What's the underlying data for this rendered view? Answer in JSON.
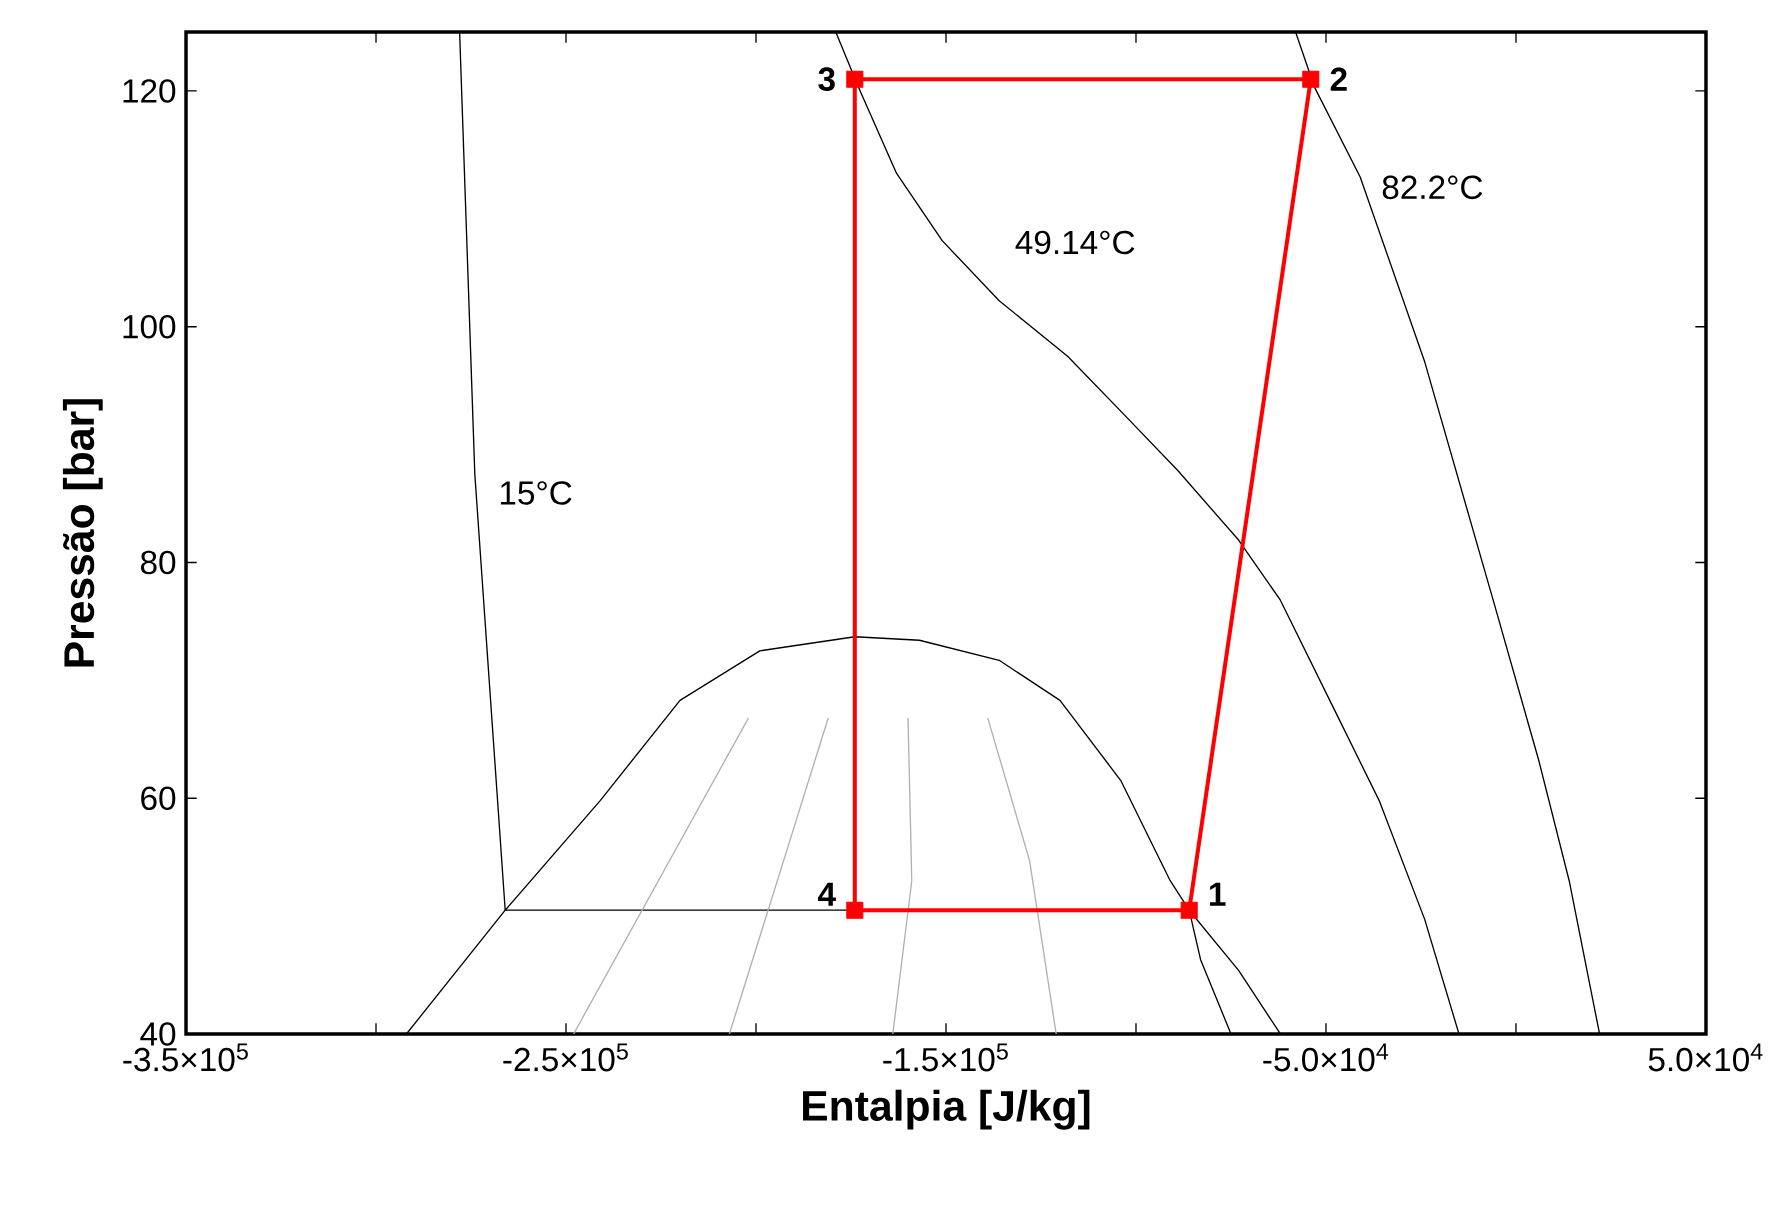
{
  "chart_data": {
    "type": "line",
    "xlabel": "Entalpia [J/kg]",
    "ylabel": "Pressão [bar]",
    "xlim": [
      -350000,
      50000
    ],
    "ylim": [
      40,
      125
    ],
    "xticks": [
      {
        "value": -350000,
        "label": "-3.5×10$^{5}$"
      },
      {
        "value": -300000,
        "label": null
      },
      {
        "value": -250000,
        "label": "-2.5×10$^{5}$"
      },
      {
        "value": -200000,
        "label": null
      },
      {
        "value": -150000,
        "label": "-1.5×10$^{5}$"
      },
      {
        "value": -100000,
        "label": null
      },
      {
        "value": -50000,
        "label": "-5.0×10$^{4}$"
      },
      {
        "value": 0,
        "label": null
      },
      {
        "value": 50000,
        "label": "5.0×10$^{4}$"
      }
    ],
    "yticks": [
      40,
      60,
      80,
      100,
      120
    ],
    "series": [
      {
        "color": "#000000",
        "marker": "none",
        "x": [
          -292000,
          -266000,
          -241000,
          -220000,
          -199000,
          -174000,
          -157000,
          -136000,
          -120000,
          -104000,
          -91000,
          -86000,
          -83000,
          -75000
        ],
        "values": [
          40,
          50.5,
          59.8,
          68.3,
          72.5,
          73.7,
          73.4,
          71.7,
          68.3,
          61.5,
          53,
          50.5,
          46.3,
          40
        ]
      },
      {
        "color": "#000000",
        "marker": "none",
        "x": [
          -278000,
          -274000,
          -266000,
          -86000,
          -73000,
          -62000
        ],
        "values": [
          125,
          87.5,
          50.5,
          50.5,
          45.4,
          40
        ]
      },
      {
        "color": "#000000",
        "marker": "none",
        "x": [
          -179000,
          -173000,
          -163000,
          -151000,
          -136000,
          -118000,
          -103000,
          -89000,
          -73000,
          -62000,
          -49000,
          -36000,
          -24000,
          -15000
        ],
        "values": [
          125,
          120.3,
          113,
          107.3,
          102.2,
          97.5,
          92.5,
          87.8,
          81.9,
          76.8,
          68.3,
          59.8,
          49.7,
          40
        ]
      },
      {
        "color": "#000000",
        "marker": "none",
        "x": [
          -58000,
          -53000,
          -41000,
          -24000,
          -6000,
          6000,
          14000,
          22000
        ],
        "values": [
          125,
          120.3,
          112.7,
          97,
          76.8,
          63.2,
          53,
          40
        ]
      },
      {
        "color": "#b0b0b0",
        "marker": "none",
        "x": [
          -202000,
          -248000
        ],
        "values": [
          66.8,
          40
        ]
      },
      {
        "color": "#b0b0b0",
        "marker": "none",
        "x": [
          -181000,
          -207000
        ],
        "values": [
          66.8,
          40
        ]
      },
      {
        "color": "#b0b0b0",
        "marker": "none",
        "x": [
          -160000,
          -159000,
          -164000
        ],
        "values": [
          66.8,
          53,
          40
        ]
      },
      {
        "color": "#b0b0b0",
        "marker": "none",
        "x": [
          -139000,
          -128000,
          -121000
        ],
        "values": [
          66.8,
          54.7,
          40
        ]
      },
      {
        "color": "#ff0000",
        "marker": "none",
        "x": [
          -86000,
          -54000
        ],
        "values": [
          50.5,
          121
        ]
      },
      {
        "color": "#ff0000",
        "marker": "none",
        "x": [
          -174000,
          -54000
        ],
        "values": [
          121,
          121
        ]
      },
      {
        "color": "#ff0000",
        "marker": "none",
        "x": [
          -174000,
          -174000
        ],
        "values": [
          121,
          50.5
        ]
      },
      {
        "color": "#ff0000",
        "marker": "none",
        "x": [
          -174000,
          -86000
        ],
        "values": [
          50.5,
          50.5
        ]
      },
      {
        "type": "scatter",
        "color": "#ff0000",
        "marker": "square",
        "x": [
          -86000,
          -54000,
          -174000,
          -174000
        ],
        "values": [
          50.5,
          121,
          121,
          50.5
        ]
      }
    ],
    "annotations": [
      "15°C",
      "49.14°C",
      "82.2°C",
      {
        "text": "1",
        "x": -86000,
        "y": 50.5
      },
      {
        "text": "2",
        "x": -54000,
        "y": 121
      },
      {
        "text": "3",
        "x": -174000,
        "y": 121
      },
      {
        "text": "4",
        "x": -174000,
        "y": 50.5
      }
    ]
  }
}
